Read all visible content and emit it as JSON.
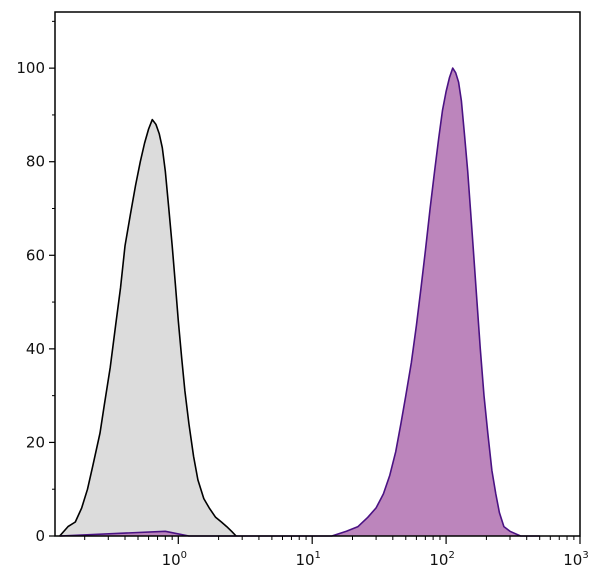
{
  "chart_data": {
    "type": "area",
    "title": "",
    "xlabel": "",
    "ylabel": "",
    "x_scale": "log",
    "xlim": [
      0.12,
      1000
    ],
    "ylim": [
      0,
      112
    ],
    "grid": false,
    "legend": "none",
    "x_ticks": [
      {
        "value": 1,
        "base": "10",
        "exp": "0"
      },
      {
        "value": 10,
        "base": "10",
        "exp": "1"
      },
      {
        "value": 100,
        "base": "10",
        "exp": "2"
      },
      {
        "value": 1000,
        "base": "10",
        "exp": "3"
      }
    ],
    "y_ticks": [
      {
        "value": 0,
        "label": "0"
      },
      {
        "value": 20,
        "label": "20"
      },
      {
        "value": 40,
        "label": "40"
      },
      {
        "value": 60,
        "label": "60"
      },
      {
        "value": 80,
        "label": "80"
      },
      {
        "value": 100,
        "label": "100"
      }
    ],
    "series": [
      {
        "fill": "#dcdcdc",
        "stroke": "#000000",
        "points": [
          [
            0.13,
            0
          ],
          [
            0.15,
            2
          ],
          [
            0.17,
            3
          ],
          [
            0.19,
            6
          ],
          [
            0.21,
            10
          ],
          [
            0.23,
            15
          ],
          [
            0.26,
            22
          ],
          [
            0.28,
            28
          ],
          [
            0.31,
            36
          ],
          [
            0.34,
            45
          ],
          [
            0.37,
            53
          ],
          [
            0.4,
            62
          ],
          [
            0.44,
            69
          ],
          [
            0.48,
            75
          ],
          [
            0.52,
            80
          ],
          [
            0.56,
            84
          ],
          [
            0.6,
            87
          ],
          [
            0.64,
            89
          ],
          [
            0.68,
            88
          ],
          [
            0.72,
            86
          ],
          [
            0.76,
            83
          ],
          [
            0.8,
            78
          ],
          [
            0.85,
            70
          ],
          [
            0.9,
            62
          ],
          [
            0.95,
            54
          ],
          [
            1.0,
            46
          ],
          [
            1.06,
            38
          ],
          [
            1.12,
            31
          ],
          [
            1.2,
            24
          ],
          [
            1.3,
            17
          ],
          [
            1.4,
            12
          ],
          [
            1.55,
            8
          ],
          [
            1.7,
            6
          ],
          [
            1.9,
            4
          ],
          [
            2.1,
            3
          ],
          [
            2.3,
            2
          ],
          [
            2.5,
            1
          ],
          [
            2.7,
            0
          ]
        ]
      },
      {
        "fill": "#bc85bc",
        "stroke": "#4a1283",
        "points": [
          [
            0.13,
            0
          ],
          [
            0.8,
            1
          ],
          [
            1.2,
            0
          ],
          [
            14,
            0
          ],
          [
            18,
            1
          ],
          [
            22,
            2
          ],
          [
            26,
            4
          ],
          [
            30,
            6
          ],
          [
            34,
            9
          ],
          [
            38,
            13
          ],
          [
            42,
            18
          ],
          [
            46,
            24
          ],
          [
            50,
            30
          ],
          [
            55,
            37
          ],
          [
            60,
            45
          ],
          [
            65,
            53
          ],
          [
            70,
            61
          ],
          [
            76,
            70
          ],
          [
            82,
            78
          ],
          [
            88,
            85
          ],
          [
            94,
            91
          ],
          [
            100,
            95
          ],
          [
            106,
            98
          ],
          [
            112,
            100
          ],
          [
            118,
            99
          ],
          [
            124,
            97
          ],
          [
            130,
            93
          ],
          [
            137,
            86
          ],
          [
            145,
            78
          ],
          [
            152,
            70
          ],
          [
            160,
            61
          ],
          [
            170,
            50
          ],
          [
            180,
            40
          ],
          [
            192,
            30
          ],
          [
            205,
            22
          ],
          [
            220,
            14
          ],
          [
            235,
            9
          ],
          [
            250,
            5
          ],
          [
            270,
            2
          ],
          [
            300,
            1
          ],
          [
            360,
            0
          ],
          [
            500,
            0
          ]
        ]
      }
    ]
  }
}
